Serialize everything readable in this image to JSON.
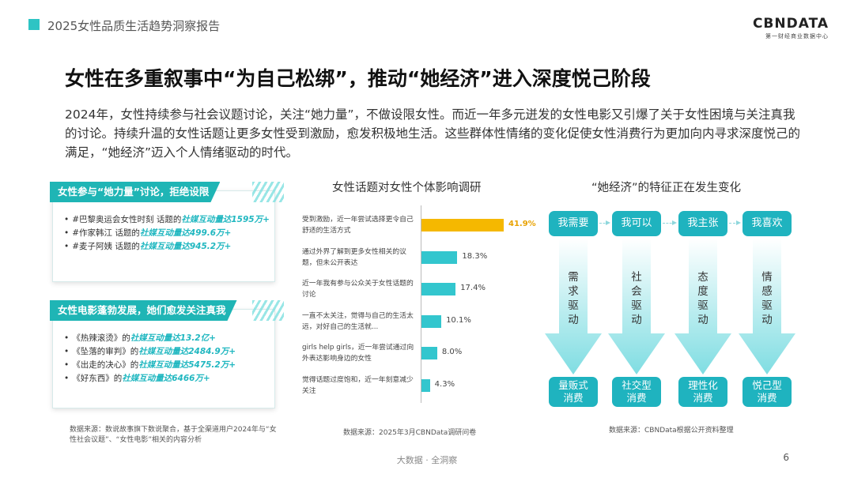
{
  "header": {
    "report_title": "2025女性品质生活趋势洞察报告"
  },
  "logo": {
    "main": "CBNDATA",
    "sub": "第一财经商业数据中心"
  },
  "headline": "女性在多重叙事中“为自己松绑”，推动“她经济”进入深度悦己阶段",
  "intro": "2024年，女性持续参与社会议题讨论，关注“她力量”，不做设限女性。而近一年多元迸发的女性电影又引爆了关于女性困境与关注真我的讨论。持续升温的女性话题让更多女性受到激励，愈发积极地生活。这些群体性情绪的变化促使女性消费行为更加向内寻求深度悦己的满足，“她经济”迈入个人情绪驱动的时代。",
  "card1": {
    "title": "女性参与“她力量”讨论，拒绝设限",
    "items": [
      {
        "text": "#巴黎奥运会女性时刻 话题的",
        "hl": "社媒互动量达1595万+"
      },
      {
        "text": "#作家韩江 话题的",
        "hl": "社媒互动量达499.6万+"
      },
      {
        "text": "#麦子阿姨 话题的",
        "hl": "社媒互动量达945.2万+"
      }
    ]
  },
  "card2": {
    "title": "女性电影蓬勃发展，她们愈发关注真我",
    "items": [
      {
        "text": "《热辣滚烫》的",
        "hl": "社媒互动量达13.2亿+"
      },
      {
        "text": "《坠落的审判》的",
        "hl": "社媒互动量达2484.9万+"
      },
      {
        "text": "《出走的决心》的",
        "hl": "社媒互动量达5475.2万+"
      },
      {
        "text": "《好东西》的",
        "hl": "社媒互动量达6466万+"
      }
    ]
  },
  "source_left": "数据来源：数说故事旗下数说聚合，基于全渠道用户2024年与“女性社会议题”、“女性电影”相关的内容分析",
  "chart_data": {
    "type": "bar",
    "title": "女性话题对女性个体影响调研",
    "categories": [
      "受到激励，近一年尝试选择更令自己舒适的生活方式",
      "通过外界了解到更多女性相关的议题，但未公开表达",
      "近一年我有参与公众关于女性话题的讨论",
      "一直不太关注，觉得与自己的生活太远，对好自己的生活就...",
      "girls help girls，近一年尝试通过向外表达影响身边的女性",
      "觉得话题过度饱和，近一年刻意减少关注"
    ],
    "values": [
      41.9,
      18.3,
      17.4,
      10.1,
      8.0,
      4.3
    ],
    "value_labels": [
      "41.9%",
      "18.3%",
      "17.4%",
      "10.1%",
      "8.0%",
      "4.3%"
    ],
    "colors": {
      "highlight": "#f5b800",
      "normal": "#33c6ce"
    }
  },
  "source_middle": "数据来源：2025年3月CBNData调研问卷",
  "diagram": {
    "title": "“她经济”的特征正在发生变化",
    "columns": [
      {
        "top": "我需要",
        "drive": "需求驱动",
        "bottom": [
          "量贩式",
          "消费"
        ]
      },
      {
        "top": "我可以",
        "drive": "社会驱动",
        "bottom": [
          "社交型",
          "消费"
        ]
      },
      {
        "top": "我主张",
        "drive": "态度驱动",
        "bottom": [
          "理性化",
          "消费"
        ]
      },
      {
        "top": "我喜欢",
        "drive": "情感驱动",
        "bottom": [
          "悦己型",
          "消费"
        ]
      }
    ]
  },
  "source_right": "数据来源：CBNData根据公开资料整理",
  "footer": {
    "slogan": "大数据 · 全洞察",
    "page": "6"
  }
}
